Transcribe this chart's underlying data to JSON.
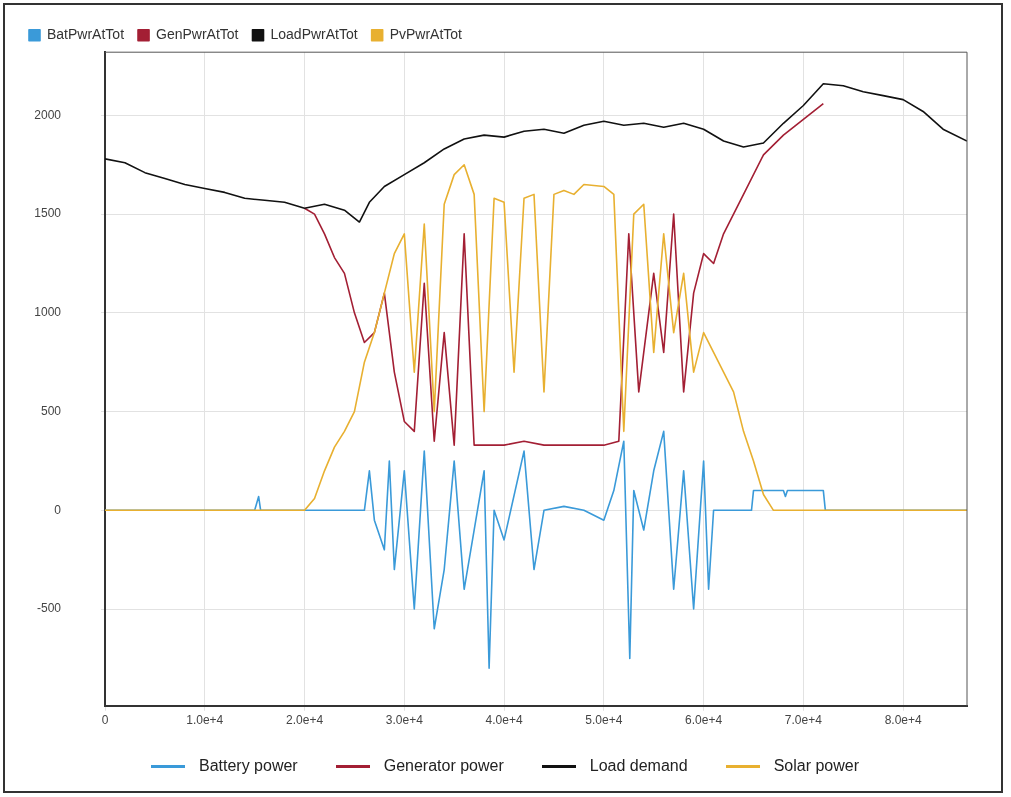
{
  "chart_data": {
    "type": "line",
    "xlim": [
      0,
      86400
    ],
    "ylim": [
      -990,
      2320
    ],
    "xticks": [
      0,
      {
        "value": 10000,
        "label": "1.0e+4"
      },
      {
        "value": 20000,
        "label": "2.0e+4"
      },
      {
        "value": 30000,
        "label": "3.0e+4"
      },
      {
        "value": 40000,
        "label": "4.0e+4"
      },
      {
        "value": 50000,
        "label": "5.0e+4"
      },
      {
        "value": 60000,
        "label": "6.0e+4"
      },
      {
        "value": 70000,
        "label": "7.0e+4"
      },
      {
        "value": 80000,
        "label": "8.0e+4"
      }
    ],
    "yticks": [
      -500,
      0,
      500,
      1000,
      1500,
      2000
    ],
    "grid": true,
    "legend": "top left",
    "marker": "none",
    "line_style": "solid",
    "annotations": [
      "Battery power",
      "Generator power",
      "Load demand",
      "Solar power"
    ],
    "series": [
      {
        "name": "BatPwrAtTot",
        "color": "#3a9ad9",
        "x": [
          0,
          15000,
          15400,
          15600,
          20000,
          26000,
          26500,
          27000,
          28000,
          28500,
          29000,
          30000,
          31000,
          32000,
          33000,
          34000,
          35000,
          36000,
          37000,
          38000,
          38500,
          39000,
          40000,
          42000,
          43000,
          44000,
          46000,
          48000,
          50000,
          51000,
          52000,
          52600,
          53000,
          54000,
          55000,
          56000,
          57000,
          58000,
          59000,
          60000,
          60500,
          61000,
          64800,
          65000,
          68000,
          68200,
          68400,
          72000,
          72200,
          86400
        ],
        "values": [
          0,
          0,
          70,
          0,
          0,
          0,
          200,
          -50,
          -200,
          250,
          -300,
          200,
          -500,
          300,
          -600,
          -300,
          250,
          -400,
          -100,
          200,
          -800,
          0,
          -150,
          300,
          -300,
          0,
          20,
          0,
          -50,
          100,
          350,
          -750,
          100,
          -100,
          200,
          400,
          -400,
          200,
          -500,
          250,
          -400,
          0,
          0,
          100,
          100,
          70,
          100,
          100,
          0,
          0
        ]
      },
      {
        "name": "GenPwrAtTot",
        "color": "#a31f34",
        "x": [
          20000,
          21000,
          22000,
          23000,
          24000,
          25000,
          26000,
          27000,
          28000,
          29000,
          30000,
          31000,
          32000,
          33000,
          34000,
          35000,
          36000,
          37000,
          38000,
          40000,
          42000,
          44000,
          46000,
          48000,
          50000,
          51500,
          52500,
          53500,
          55000,
          56000,
          57000,
          58000,
          59000,
          60000,
          61000,
          62000,
          64000,
          66000,
          68000,
          70000,
          72000
        ],
        "values": [
          1530,
          1500,
          1400,
          1280,
          1200,
          1000,
          850,
          900,
          1100,
          700,
          450,
          400,
          1150,
          350,
          900,
          330,
          1400,
          330,
          330,
          330,
          350,
          330,
          330,
          330,
          330,
          350,
          1400,
          600,
          1200,
          800,
          1500,
          600,
          1100,
          1300,
          1250,
          1400,
          1600,
          1800,
          1900,
          1980,
          2060
        ]
      },
      {
        "name": "LoadPwrAtTot",
        "color": "#111111",
        "x": [
          0,
          2000,
          4000,
          6000,
          8000,
          10000,
          12000,
          14000,
          16000,
          18000,
          20000,
          22000,
          24000,
          25500,
          26500,
          28000,
          30000,
          32000,
          34000,
          36000,
          38000,
          40000,
          42000,
          44000,
          46000,
          48000,
          50000,
          52000,
          54000,
          56000,
          58000,
          60000,
          62000,
          64000,
          66000,
          68000,
          70000,
          72000,
          74000,
          76000,
          78000,
          80000,
          82000,
          84000,
          86400
        ],
        "values": [
          1780,
          1760,
          1710,
          1680,
          1650,
          1630,
          1610,
          1580,
          1570,
          1560,
          1530,
          1550,
          1520,
          1460,
          1560,
          1640,
          1700,
          1760,
          1830,
          1880,
          1900,
          1890,
          1920,
          1930,
          1910,
          1950,
          1970,
          1950,
          1960,
          1940,
          1960,
          1930,
          1870,
          1840,
          1860,
          1960,
          2050,
          2160,
          2150,
          2120,
          2100,
          2080,
          2020,
          1930,
          1870
        ]
      },
      {
        "name": "PvPwrAtTot",
        "color": "#e8b030",
        "x": [
          0,
          20000,
          21000,
          22000,
          23000,
          24000,
          25000,
          26000,
          27000,
          28000,
          29000,
          30000,
          31000,
          32000,
          33000,
          34000,
          35000,
          36000,
          37000,
          38000,
          39000,
          40000,
          41000,
          42000,
          43000,
          44000,
          45000,
          46000,
          47000,
          48000,
          50000,
          51000,
          52000,
          53000,
          54000,
          55000,
          56000,
          57000,
          58000,
          59000,
          60000,
          61000,
          62000,
          63000,
          64000,
          65000,
          66000,
          67000,
          86400
        ],
        "values": [
          0,
          0,
          60,
          200,
          320,
          400,
          500,
          750,
          900,
          1100,
          1300,
          1400,
          700,
          1450,
          500,
          1550,
          1700,
          1750,
          1600,
          500,
          1580,
          1560,
          700,
          1580,
          1600,
          600,
          1600,
          1620,
          1600,
          1650,
          1640,
          1600,
          400,
          1500,
          1550,
          800,
          1400,
          900,
          1200,
          700,
          900,
          800,
          700,
          600,
          400,
          250,
          80,
          0,
          0
        ]
      }
    ]
  }
}
